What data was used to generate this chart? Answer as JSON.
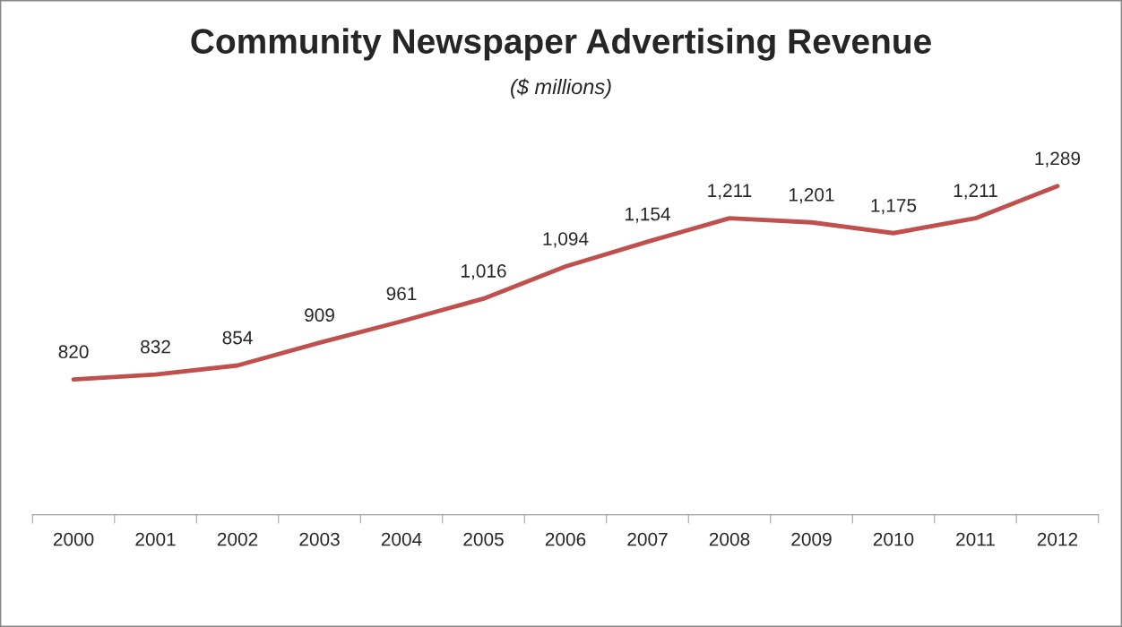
{
  "chart_data": {
    "type": "line",
    "title": "Community Newspaper Advertising Revenue",
    "subtitle": "($ millions)",
    "categories": [
      "2000",
      "2001",
      "2002",
      "2003",
      "2004",
      "2005",
      "2006",
      "2007",
      "2008",
      "2009",
      "2010",
      "2011",
      "2012"
    ],
    "series": [
      {
        "color": "#c0504d",
        "values": [
          820,
          832,
          854,
          909,
          961,
          1016,
          1094,
          1154,
          1211,
          1201,
          1175,
          1211,
          1289
        ],
        "value_labels": [
          "820",
          "832",
          "854",
          "909",
          "961",
          "1,016",
          "1,094",
          "1,154",
          "1,211",
          "1,201",
          "1,175",
          "1,211",
          "1,289"
        ]
      }
    ],
    "grid": false,
    "marker": "none",
    "line_style": "solid"
  }
}
